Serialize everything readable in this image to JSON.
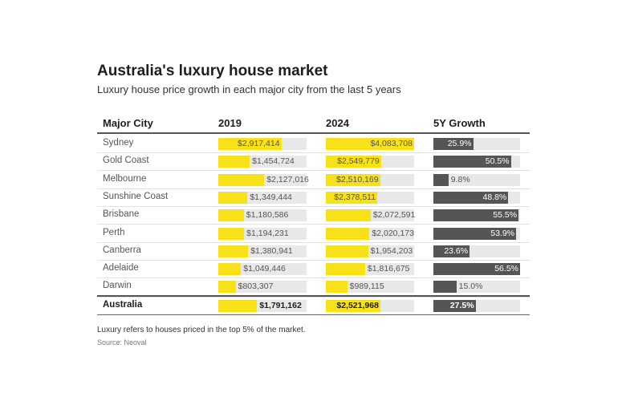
{
  "title": "Australia's luxury house market",
  "subtitle": "Luxury house price growth in each major city from the last 5 years",
  "footnote": "Luxury refers to houses priced in the top 5% of the market.",
  "source": "Source: Neoval",
  "colors": {
    "bar_yellow": "#f7e21a",
    "bar_dark": "#555555",
    "track": "#e8e8e8"
  },
  "chart_data": {
    "type": "table",
    "columns": [
      "Major City",
      "2019",
      "2024",
      "5Y Growth"
    ],
    "scale": {
      "price_max": 4083708,
      "growth_max": 0.565
    },
    "rows": [
      {
        "city": "Sydney",
        "v2019": 2917414,
        "l2019": "$2,917,414",
        "v2024": 4083708,
        "l2024": "$4,083,708",
        "growth": 0.259,
        "lgrowth": "25.9%"
      },
      {
        "city": "Gold Coast",
        "v2019": 1454724,
        "l2019": "$1,454,724",
        "v2024": 2549779,
        "l2024": "$2,549,779",
        "growth": 0.505,
        "lgrowth": "50.5%"
      },
      {
        "city": "Melbourne",
        "v2019": 2127016,
        "l2019": "$2,127,016",
        "v2024": 2510169,
        "l2024": "$2,510,169",
        "growth": 0.098,
        "lgrowth": "9.8%"
      },
      {
        "city": "Sunshine Coast",
        "v2019": 1349444,
        "l2019": "$1,349,444",
        "v2024": 2378511,
        "l2024": "$2,378,511",
        "growth": 0.488,
        "lgrowth": "48.8%"
      },
      {
        "city": "Brisbane",
        "v2019": 1180586,
        "l2019": "$1,180,586",
        "v2024": 2072591,
        "l2024": "$2,072,591",
        "growth": 0.555,
        "lgrowth": "55.5%"
      },
      {
        "city": "Perth",
        "v2019": 1194231,
        "l2019": "$1,194,231",
        "v2024": 2020173,
        "l2024": "$2,020,173",
        "growth": 0.539,
        "lgrowth": "53.9%"
      },
      {
        "city": "Canberra",
        "v2019": 1380941,
        "l2019": "$1,380,941",
        "v2024": 1954203,
        "l2024": "$1,954,203",
        "growth": 0.236,
        "lgrowth": "23.6%"
      },
      {
        "city": "Adelaide",
        "v2019": 1049446,
        "l2019": "$1,049,446",
        "v2024": 1816675,
        "l2024": "$1,816,675",
        "growth": 0.565,
        "lgrowth": "56.5%"
      },
      {
        "city": "Darwin",
        "v2019": 803307,
        "l2019": "$803,307",
        "v2024": 989115,
        "l2024": "$989,115",
        "growth": 0.15,
        "lgrowth": "15.0%"
      }
    ],
    "total": {
      "city": "Australia",
      "v2019": 1791162,
      "l2019": "$1,791,162",
      "v2024": 2521968,
      "l2024": "$2,521,968",
      "growth": 0.275,
      "lgrowth": "27.5%"
    }
  }
}
